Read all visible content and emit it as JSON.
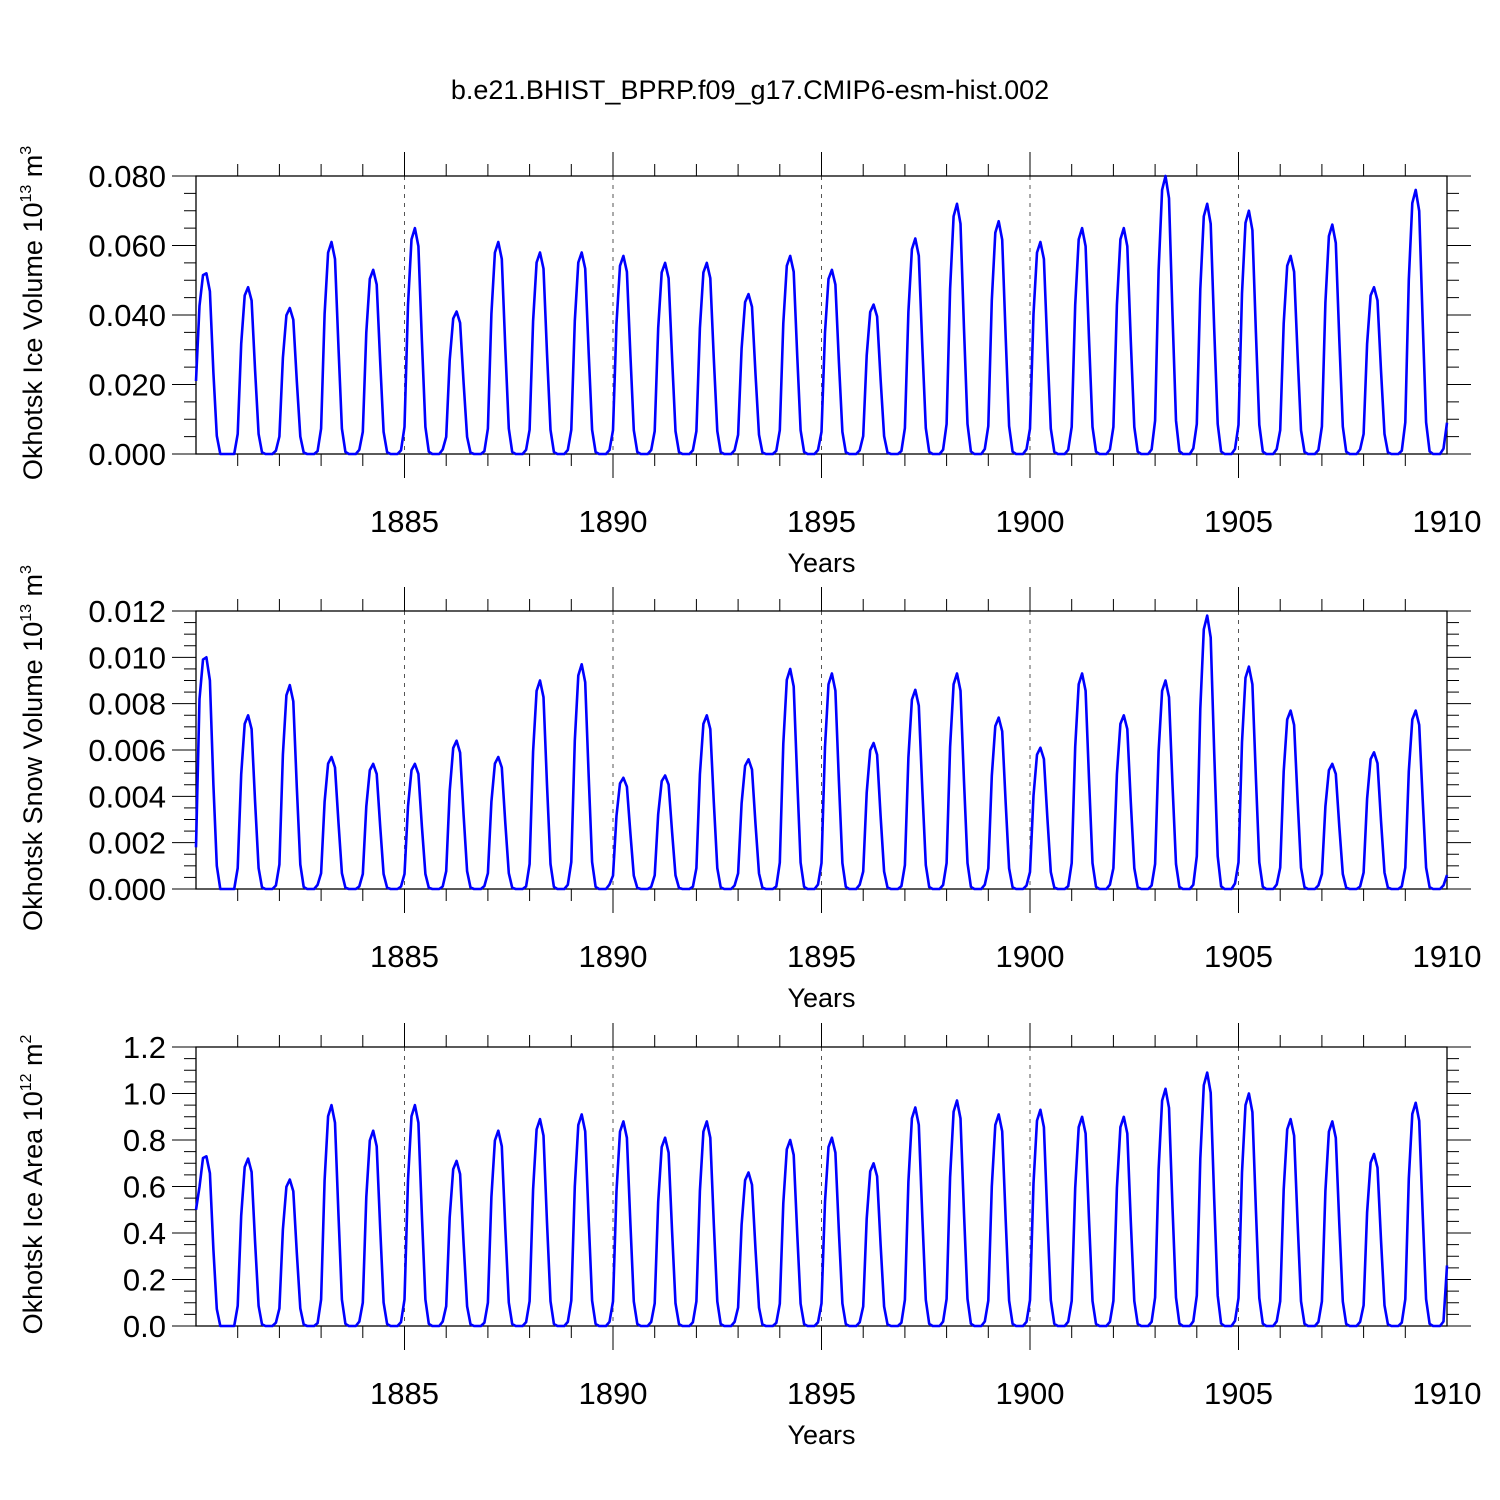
{
  "title": "b.e21.BHIST_BPRP.f09_g17.CMIP6-esm-hist.002",
  "colors": {
    "line": "#0000ff",
    "axis": "#000000",
    "grid": "#555555"
  },
  "chart_data": [
    {
      "type": "line",
      "name": "ice-volume",
      "series": [
        {
          "name": "Okhotsk Ice Volume",
          "peaks": [
            0.052,
            0.048,
            0.042,
            0.061,
            0.053,
            0.065,
            0.041,
            0.061,
            0.058,
            0.058,
            0.057,
            0.055,
            0.055,
            0.046,
            0.057,
            0.053,
            0.043,
            0.062,
            0.072,
            0.067,
            0.061,
            0.065,
            0.065,
            0.08,
            0.072,
            0.07,
            0.057,
            0.066,
            0.048,
            0.076
          ]
        }
      ],
      "start_value": 0.021,
      "end_value": 0.009,
      "xlim": [
        1880,
        1910
      ],
      "ylim": [
        0,
        0.08
      ],
      "x_ticks": [
        1885,
        1890,
        1895,
        1900,
        1905,
        1910
      ],
      "x_tick_labels": [
        "1885",
        "1890",
        "1895",
        "1900",
        "1905",
        "1910"
      ],
      "y_ticks": [
        0,
        0.02,
        0.04,
        0.06,
        0.08
      ],
      "y_tick_labels": [
        "0.000",
        "0.020",
        "0.040",
        "0.060",
        "0.080"
      ],
      "ylabel": {
        "text": "Okhotsk Ice Volume 10",
        "exp": "13",
        "unit": " m",
        "unit_exp": "3"
      },
      "xlabel": "Years"
    },
    {
      "type": "line",
      "name": "snow-volume",
      "series": [
        {
          "name": "Okhotsk Snow Volume",
          "peaks": [
            0.01,
            0.0075,
            0.0088,
            0.0057,
            0.0054,
            0.0054,
            0.0064,
            0.0057,
            0.009,
            0.0097,
            0.0048,
            0.0049,
            0.0075,
            0.0056,
            0.0095,
            0.0093,
            0.0063,
            0.0086,
            0.0093,
            0.0074,
            0.0061,
            0.0093,
            0.0075,
            0.009,
            0.0118,
            0.0096,
            0.0077,
            0.0054,
            0.0059,
            0.0077
          ]
        }
      ],
      "start_value": 0.0018,
      "end_value": 0.0006,
      "xlim": [
        1880,
        1910
      ],
      "ylim": [
        0,
        0.012
      ],
      "x_ticks": [
        1885,
        1890,
        1895,
        1900,
        1905,
        1910
      ],
      "x_tick_labels": [
        "1885",
        "1890",
        "1895",
        "1900",
        "1905",
        "1910"
      ],
      "y_ticks": [
        0,
        0.002,
        0.004,
        0.006,
        0.008,
        0.01,
        0.012
      ],
      "y_tick_labels": [
        "0.000",
        "0.002",
        "0.004",
        "0.006",
        "0.008",
        "0.010",
        "0.012"
      ],
      "ylabel": {
        "text": "Okhotsk Snow Volume 10",
        "exp": "13",
        "unit": " m",
        "unit_exp": "3"
      },
      "xlabel": "Years"
    },
    {
      "type": "line",
      "name": "ice-area",
      "series": [
        {
          "name": "Okhotsk Ice Area",
          "peaks": [
            0.73,
            0.72,
            0.63,
            0.95,
            0.84,
            0.95,
            0.71,
            0.84,
            0.89,
            0.91,
            0.88,
            0.81,
            0.88,
            0.66,
            0.8,
            0.81,
            0.7,
            0.94,
            0.97,
            0.91,
            0.93,
            0.9,
            0.9,
            1.02,
            1.09,
            1.0,
            0.89,
            0.88,
            0.74,
            0.96
          ]
        }
      ],
      "start_value": 0.5,
      "end_value": 0.26,
      "xlim": [
        1880,
        1910
      ],
      "ylim": [
        0,
        1.2
      ],
      "x_ticks": [
        1885,
        1890,
        1895,
        1900,
        1905,
        1910
      ],
      "x_tick_labels": [
        "1885",
        "1890",
        "1895",
        "1900",
        "1905",
        "1910"
      ],
      "y_ticks": [
        0,
        0.2,
        0.4,
        0.6,
        0.8,
        1.0,
        1.2
      ],
      "y_tick_labels": [
        "0.0",
        "0.2",
        "0.4",
        "0.6",
        "0.8",
        "1.0",
        "1.2"
      ],
      "ylabel": {
        "text": "Okhotsk Ice Area 10",
        "exp": "12",
        "unit": " m",
        "unit_exp": "2"
      },
      "xlabel": "Years"
    }
  ]
}
